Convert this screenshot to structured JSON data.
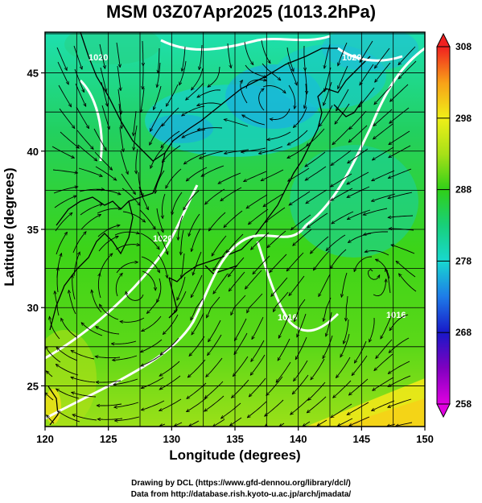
{
  "title": "MSM 03Z07Apr2025 (1013.2hPa)",
  "x_axis": {
    "label": "Longitude (degrees)",
    "ticks": [
      120,
      125,
      130,
      135,
      140,
      145,
      150
    ]
  },
  "y_axis": {
    "label": "Latitude  (degrees)",
    "ticks": [
      25,
      30,
      35,
      40,
      45
    ]
  },
  "extent": {
    "lon": [
      120,
      150
    ],
    "lat": [
      22.4,
      47.6
    ]
  },
  "colorbar": {
    "ticks": [
      258,
      268,
      278,
      288,
      298,
      308
    ],
    "range": [
      258,
      308
    ],
    "stops": [
      {
        "value": 258,
        "color": "#e000e0"
      },
      {
        "value": 263,
        "color": "#8000c0"
      },
      {
        "value": 268,
        "color": "#1818c8"
      },
      {
        "value": 273,
        "color": "#1e7be8"
      },
      {
        "value": 278,
        "color": "#18d8d0"
      },
      {
        "value": 283,
        "color": "#18d07a"
      },
      {
        "value": 288,
        "color": "#30d018"
      },
      {
        "value": 293,
        "color": "#a8e018"
      },
      {
        "value": 298,
        "color": "#f0f018"
      },
      {
        "value": 303,
        "color": "#f8a018"
      },
      {
        "value": 308,
        "color": "#f02020"
      }
    ]
  },
  "contour_labels": [
    "1020",
    "1020",
    "1020",
    "1016",
    "1016"
  ],
  "credits": [
    "Drawing by DCL (https://www.gfd-dennou.org/library/dcl/)",
    "Data from http://database.rish.kyoto-u.ac.jp/arch/jmadata/"
  ]
}
